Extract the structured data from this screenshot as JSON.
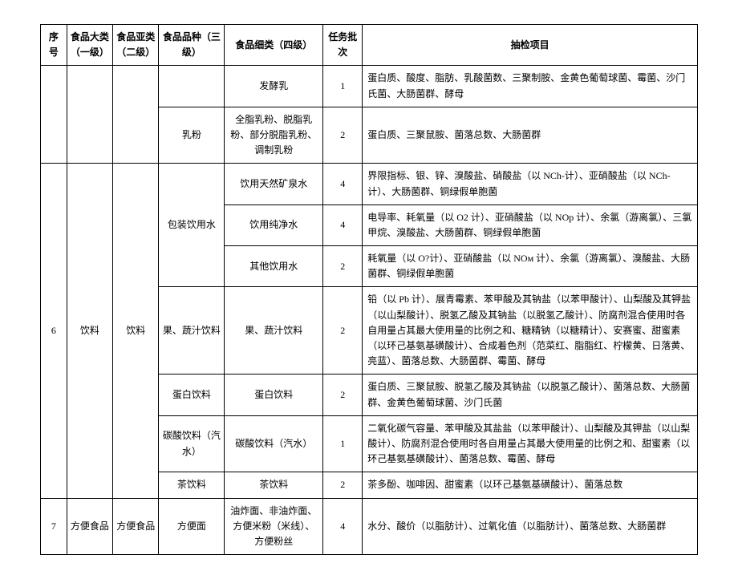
{
  "headers": {
    "seq": "序号",
    "l1": "食品大类（一级）",
    "l2": "食品亚类（二级）",
    "l3": "食品品种（三级）",
    "l4": "食品细类（四级）",
    "batch": "任务批次",
    "items": "抽检项目"
  },
  "rows": {
    "r1": {
      "l4": "发酵乳",
      "batch": "1",
      "items": "蛋白质、酸度、脂肪、乳酸菌数、三聚制胺、金黄色葡萄球菌、霉菌、沙门氏菌、大肠菌群、酵母"
    },
    "r2": {
      "l3": "乳粉",
      "l4": "全脂乳粉、脱脂乳粉、部分脱脂乳粉、调制乳粉",
      "batch": "2",
      "items": "蛋白质、三聚鼠胺、菌落总数、大肠菌群"
    },
    "r3": {
      "seq": "6",
      "l1": "饮料",
      "l2": "饮料",
      "l3a": "包装饮用水",
      "l4": "饮用天然矿泉水",
      "batch": "4",
      "items": "界限指标、银、锌、溴酸盐、硝酸盐（以 NCh-计）、亚硝酸盐（以 NCh-计）、大肠菌群、铜绿假单胞菌"
    },
    "r4": {
      "l4": "饮用纯净水",
      "batch": "4",
      "items": "电导率、耗氧量（以 O2 计）、亚硝酸盐（以 NOp 计）、余氯（游离氯）、三氯甲烷、溴酸盐、大肠菌群、铜绿假单胞菌"
    },
    "r5": {
      "l4": "其他饮用水",
      "batch": "2",
      "items": "耗氧量（以 O?计）、亚硝酸盐（以 NOм 计）、余氯（游离氯）、溴酸盐、大肠菌群、铜绿假单胞菌"
    },
    "r6": {
      "l3": "果、蔬汁饮料",
      "l4": "果、蔬汁饮料",
      "batch": "2",
      "items": "铅（以 Pb 计）、展青霉素、苯甲酸及其钠盐（以苯甲酸计）、山梨酸及其钾盐（以山梨酸计）、脱氢乙酸及其钠盐（以脱氢乙酸计）、防腐剂混合使用时各自用量占其最大使用量的比例之和、糖精钠（以糖精计）、安赛蜜、甜蜜素（以环己基氨基磺酸计）、合成着色剂（范菜红、脂脂红、柠檬黄、日落黄、亮蓝）、菌落总数、大肠菌群、霉菌、酵母"
    },
    "r7": {
      "l3": "蛋白饮料",
      "l4": "蛋白饮料",
      "batch": "2",
      "items": "蛋白质、三聚鼠胺、脱氢乙酸及其钠盐（以脱氢乙酸计）、菌落总数、大肠菌群、金黄色葡萄球菌、沙门氏菌"
    },
    "r8": {
      "l3": "碳酸饮料（汽水）",
      "l4": "碳酸饮料（汽水）",
      "batch": "1",
      "items": "二氧化碳气容量、苯甲酸及其盐盐（以苯甲酸计）、山梨酸及其钾盐（以山梨酸计）、防腐剂混合使用时各自用量占其最大使用量的比例之和、甜蜜素（以环己基氨基磺酸计）、菌落总数、霉菌、酵母"
    },
    "r9": {
      "l3": "茶饮料",
      "l4": "茶饮料",
      "batch": "2",
      "items": "茶多酚、咖啡因、甜蜜素（以环己基氨基磺酸计）、菌落总数"
    },
    "r10": {
      "seq": "7",
      "l1": "方便食品",
      "l2": "方便食品",
      "l3": "方便面",
      "l4": "油炸面、非油炸面、方便米粉（米线）、方便粉丝",
      "batch": "4",
      "items": "水分、酸价（以脂肪计）、过氧化值（以脂肪计）、菌落总数、大肠菌群"
    }
  }
}
